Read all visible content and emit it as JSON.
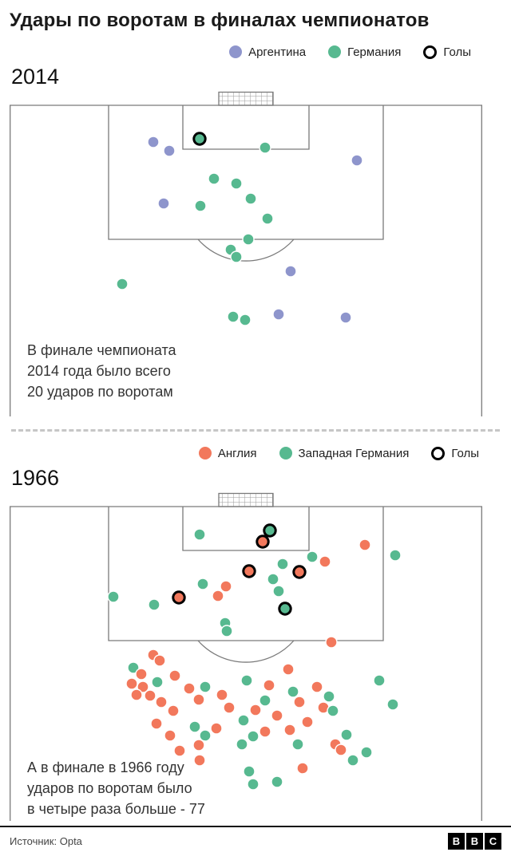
{
  "title": "Удары по воротам в финалах чемпионатов",
  "footer": {
    "source": "Источник: Opta",
    "bbc": [
      "B",
      "B",
      "C"
    ]
  },
  "pitch_line_color": "#7a7a7a",
  "chart_data": {
    "type": "scatter",
    "title": "Удары по воротам в финалах чемпионатов",
    "shot_format": [
      "x_px_on_pitch",
      "y_px_below_goal_line",
      "team_index_in_legend",
      "is_goal"
    ],
    "panels": [
      {
        "year": "2014",
        "total_shots": 20,
        "goals": {
          "Германия": 1,
          "Аргентина": 0
        },
        "legend": [
          {
            "label": "Аргентина",
            "team": "argentina",
            "style": "dot",
            "color": "#8e95cc"
          },
          {
            "label": "Германия",
            "team": "germany",
            "style": "dot",
            "color": "#57b990"
          },
          {
            "label": "Голы",
            "team": "goals",
            "style": "ring"
          }
        ],
        "annotation": [
          "В финале чемпионата",
          "2014 года было всего",
          "20 ударов по воротам"
        ],
        "shots": [
          [
            180,
            46,
            0,
            0
          ],
          [
            200,
            57,
            0,
            0
          ],
          [
            238,
            42,
            1,
            1
          ],
          [
            320,
            53,
            1,
            0
          ],
          [
            435,
            69,
            0,
            0
          ],
          [
            256,
            92,
            1,
            0
          ],
          [
            284,
            98,
            1,
            0
          ],
          [
            302,
            117,
            1,
            0
          ],
          [
            193,
            123,
            0,
            0
          ],
          [
            239,
            126,
            1,
            0
          ],
          [
            323,
            142,
            1,
            0
          ],
          [
            299,
            168,
            1,
            0
          ],
          [
            277,
            181,
            1,
            0
          ],
          [
            284,
            190,
            1,
            0
          ],
          [
            352,
            208,
            0,
            0
          ],
          [
            141,
            224,
            1,
            0
          ],
          [
            337,
            262,
            0,
            0
          ],
          [
            280,
            265,
            1,
            0
          ],
          [
            295,
            269,
            1,
            0
          ],
          [
            421,
            266,
            0,
            0
          ]
        ]
      },
      {
        "year": "1966",
        "total_shots": 77,
        "goals": {
          "Англия": 4,
          "Западная Германия": 2
        },
        "legend": [
          {
            "label": "Англия",
            "team": "england",
            "style": "dot",
            "color": "#f2785c"
          },
          {
            "label": "Западная Германия",
            "team": "west-germany",
            "style": "dot",
            "color": "#57b990"
          },
          {
            "label": "Голы",
            "team": "goals",
            "style": "ring"
          }
        ],
        "annotation": [
          "А в финале в 1966 году",
          "ударов по воротам было",
          "в четыре раза больше - 77"
        ],
        "shots": [
          [
            238,
            35,
            1,
            0
          ],
          [
            326,
            30,
            1,
            1
          ],
          [
            317,
            44,
            0,
            1
          ],
          [
            379,
            63,
            1,
            0
          ],
          [
            395,
            69,
            0,
            0
          ],
          [
            445,
            48,
            0,
            0
          ],
          [
            483,
            61,
            1,
            0
          ],
          [
            342,
            72,
            1,
            0
          ],
          [
            300,
            81,
            0,
            1
          ],
          [
            363,
            82,
            0,
            1
          ],
          [
            271,
            100,
            0,
            0
          ],
          [
            242,
            97,
            1,
            0
          ],
          [
            330,
            91,
            1,
            0
          ],
          [
            130,
            113,
            1,
            0
          ],
          [
            181,
            123,
            1,
            0
          ],
          [
            212,
            114,
            0,
            1
          ],
          [
            345,
            128,
            1,
            1
          ],
          [
            261,
            112,
            0,
            0
          ],
          [
            337,
            106,
            1,
            0
          ],
          [
            270,
            146,
            1,
            0
          ],
          [
            272,
            156,
            1,
            0
          ],
          [
            403,
            170,
            0,
            0
          ],
          [
            180,
            186,
            0,
            0
          ],
          [
            188,
            193,
            0,
            0
          ],
          [
            155,
            202,
            1,
            0
          ],
          [
            165,
            210,
            0,
            0
          ],
          [
            153,
            222,
            0,
            0
          ],
          [
            167,
            226,
            0,
            0
          ],
          [
            185,
            220,
            1,
            0
          ],
          [
            207,
            212,
            0,
            0
          ],
          [
            176,
            237,
            0,
            0
          ],
          [
            190,
            245,
            0,
            0
          ],
          [
            159,
            236,
            0,
            0
          ],
          [
            205,
            256,
            0,
            0
          ],
          [
            225,
            228,
            0,
            0
          ],
          [
            237,
            242,
            0,
            0
          ],
          [
            245,
            226,
            1,
            0
          ],
          [
            184,
            272,
            0,
            0
          ],
          [
            232,
            276,
            1,
            0
          ],
          [
            201,
            287,
            0,
            0
          ],
          [
            237,
            299,
            0,
            0
          ],
          [
            245,
            287,
            1,
            0
          ],
          [
            259,
            278,
            0,
            0
          ],
          [
            275,
            252,
            0,
            0
          ],
          [
            266,
            236,
            0,
            0
          ],
          [
            297,
            218,
            1,
            0
          ],
          [
            325,
            224,
            0,
            0
          ],
          [
            320,
            243,
            1,
            0
          ],
          [
            308,
            255,
            0,
            0
          ],
          [
            293,
            268,
            1,
            0
          ],
          [
            305,
            288,
            1,
            0
          ],
          [
            291,
            298,
            1,
            0
          ],
          [
            320,
            282,
            0,
            0
          ],
          [
            335,
            262,
            0,
            0
          ],
          [
            349,
            204,
            0,
            0
          ],
          [
            355,
            232,
            1,
            0
          ],
          [
            363,
            245,
            0,
            0
          ],
          [
            351,
            280,
            0,
            0
          ],
          [
            361,
            298,
            1,
            0
          ],
          [
            373,
            270,
            0,
            0
          ],
          [
            385,
            226,
            0,
            0
          ],
          [
            400,
            238,
            1,
            0
          ],
          [
            393,
            252,
            0,
            0
          ],
          [
            405,
            256,
            1,
            0
          ],
          [
            422,
            286,
            1,
            0
          ],
          [
            408,
            298,
            0,
            0
          ],
          [
            415,
            305,
            0,
            0
          ],
          [
            463,
            218,
            1,
            0
          ],
          [
            480,
            248,
            1,
            0
          ],
          [
            430,
            318,
            1,
            0
          ],
          [
            447,
            308,
            1,
            0
          ],
          [
            367,
            328,
            0,
            0
          ],
          [
            300,
            332,
            1,
            0
          ],
          [
            305,
            348,
            1,
            0
          ],
          [
            238,
            318,
            0,
            0
          ],
          [
            213,
            306,
            0,
            0
          ],
          [
            335,
            345,
            1,
            0
          ]
        ]
      }
    ]
  }
}
